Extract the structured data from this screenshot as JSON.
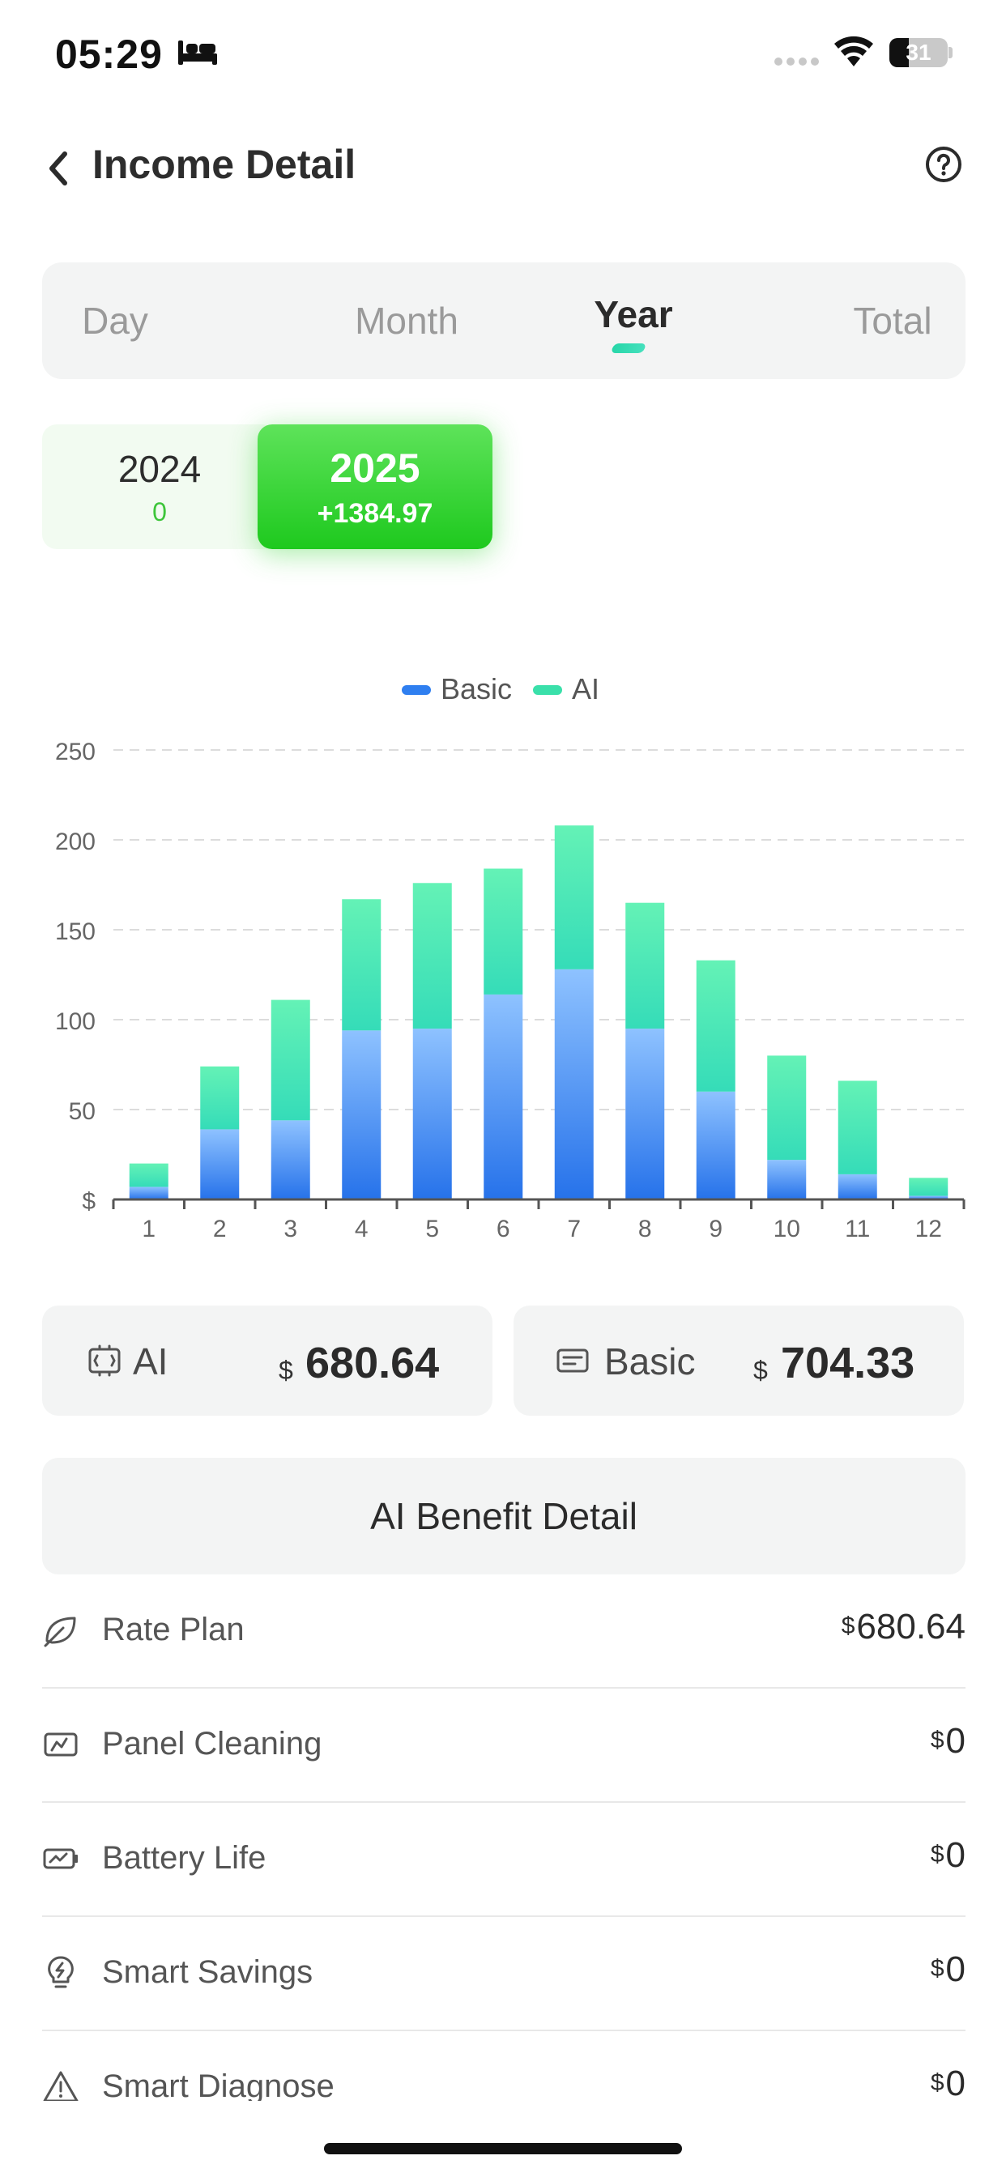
{
  "status_bar": {
    "time": "05:29",
    "battery": "31"
  },
  "header": {
    "title": "Income Detail"
  },
  "tabs": [
    {
      "label": "Day",
      "active": false
    },
    {
      "label": "Month",
      "active": false
    },
    {
      "label": "Year",
      "active": true
    },
    {
      "label": "Total",
      "active": false
    }
  ],
  "years": [
    {
      "year": "2024",
      "value": "0",
      "selected": false
    },
    {
      "year": "2025",
      "value": "+1384.97",
      "selected": true
    }
  ],
  "chart_data": {
    "type": "bar",
    "stacked": true,
    "categories": [
      "1",
      "2",
      "3",
      "4",
      "5",
      "6",
      "7",
      "8",
      "9",
      "10",
      "11",
      "12"
    ],
    "series": [
      {
        "name": "Basic",
        "color": "#2f7ff0",
        "values": [
          7,
          39,
          44,
          94,
          95,
          114,
          128,
          95,
          60,
          22,
          14,
          2
        ]
      },
      {
        "name": "AI",
        "color": "#3ae0aa",
        "values": [
          13,
          35,
          67,
          73,
          81,
          70,
          80,
          70,
          73,
          58,
          52,
          10
        ]
      }
    ],
    "ylim": [
      0,
      250
    ],
    "yticks": [
      "$",
      "50",
      "100",
      "150",
      "200",
      "250"
    ],
    "ytick_values": [
      0,
      50,
      100,
      150,
      200,
      250
    ],
    "grid": true,
    "legend_position": "top-center"
  },
  "summary": {
    "ai": {
      "label": "AI",
      "currency": "$",
      "amount": "680.64"
    },
    "basic": {
      "label": "Basic",
      "currency": "$",
      "amount": "704.33"
    }
  },
  "benefit_button": {
    "label": "AI Benefit Detail"
  },
  "benefits": [
    {
      "icon": "leaf-icon",
      "label": "Rate Plan",
      "currency": "$",
      "value": "680.64"
    },
    {
      "icon": "panel-cleaning-icon",
      "label": "Panel Cleaning",
      "currency": "$",
      "value": "0"
    },
    {
      "icon": "battery-life-icon",
      "label": "Battery Life",
      "currency": "$",
      "value": "0"
    },
    {
      "icon": "lightbulb-icon",
      "label": "Smart Savings",
      "currency": "$",
      "value": "0"
    },
    {
      "icon": "warning-icon",
      "label": "Smart Diagnose",
      "currency": "$",
      "value": "0"
    }
  ]
}
